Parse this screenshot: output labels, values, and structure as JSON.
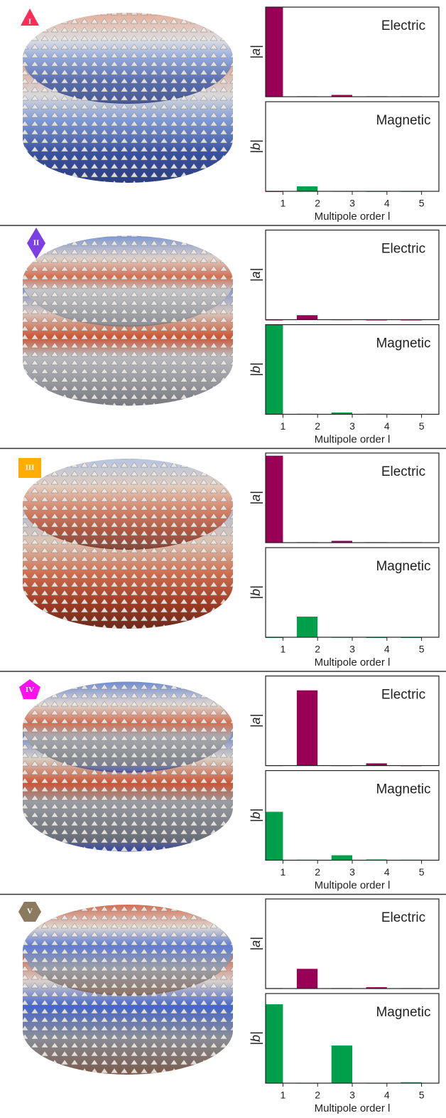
{
  "chart_data": [
    {
      "type": "bar",
      "annotation": "I",
      "text": "Electric",
      "ylabel": "|a|",
      "x": [
        1,
        2,
        3,
        4,
        5
      ],
      "values": [
        1.0,
        0.005,
        0.02,
        0.005,
        0.005
      ],
      "color": "#990055",
      "xlim": [
        0.5,
        5.5
      ],
      "ylim": [
        0,
        1
      ]
    },
    {
      "type": "bar",
      "text": "Magnetic",
      "ylabel": "|b|",
      "x": [
        1,
        2,
        3,
        4,
        5
      ],
      "values": [
        0,
        0.055,
        0.003,
        0.002,
        0.002
      ],
      "color": "#00a04a",
      "xlim": [
        0.5,
        5.5
      ],
      "ylim": [
        0,
        1
      ],
      "xticks": [
        1,
        2,
        3,
        4,
        5
      ],
      "xlabel": "Multipole order l"
    },
    {
      "type": "bar",
      "annotation": "II",
      "text": "Electric",
      "ylabel": "|a|",
      "x": [
        1,
        2,
        3,
        4,
        5
      ],
      "values": [
        0,
        0.05,
        0.003,
        0,
        0
      ],
      "color": "#990055",
      "xlim": [
        0.5,
        5.5
      ],
      "ylim": [
        0,
        1
      ]
    },
    {
      "type": "bar",
      "text": "Magnetic",
      "ylabel": "|b|",
      "x": [
        1,
        2,
        3,
        4,
        5
      ],
      "values": [
        1.0,
        0.005,
        0.02,
        0.005,
        0.003
      ],
      "color": "#00a04a",
      "xlim": [
        0.5,
        5.5
      ],
      "ylim": [
        0,
        1
      ],
      "xticks": [
        1,
        2,
        3,
        4,
        5
      ],
      "xlabel": "Multipole order l"
    },
    {
      "type": "bar",
      "annotation": "III",
      "text": "Electric",
      "ylabel": "|a|",
      "x": [
        1,
        2,
        3,
        4,
        5
      ],
      "values": [
        0.97,
        0.005,
        0.02,
        0.005,
        0.005
      ],
      "color": "#990055",
      "xlim": [
        0.5,
        5.5
      ],
      "ylim": [
        0,
        1
      ]
    },
    {
      "type": "bar",
      "text": "Magnetic",
      "ylabel": "|b|",
      "x": [
        1,
        2,
        3,
        4,
        5
      ],
      "values": [
        0,
        0.23,
        0.002,
        0,
        0
      ],
      "color": "#00a04a",
      "xlim": [
        0.5,
        5.5
      ],
      "ylim": [
        0,
        1
      ],
      "xticks": [
        1,
        2,
        3,
        4,
        5
      ],
      "xlabel": "Multipole order l"
    },
    {
      "type": "bar",
      "annotation": "IV",
      "text": "Electric",
      "ylabel": "|a|",
      "x": [
        1,
        2,
        3,
        4,
        5
      ],
      "values": [
        0.003,
        0.84,
        0.003,
        0.025,
        0.002
      ],
      "color": "#990055",
      "xlim": [
        0.5,
        5.5
      ],
      "ylim": [
        0,
        1
      ]
    },
    {
      "type": "bar",
      "text": "Magnetic",
      "ylabel": "|b|",
      "x": [
        1,
        2,
        3,
        4,
        5
      ],
      "values": [
        0.54,
        0.005,
        0.055,
        0.008,
        0.005
      ],
      "color": "#00a04a",
      "xlim": [
        0.5,
        5.5
      ],
      "ylim": [
        0,
        1
      ],
      "xticks": [
        1,
        2,
        3,
        4,
        5
      ],
      "xlabel": "Multipole order l"
    },
    {
      "type": "bar",
      "annotation": "V",
      "text": "Electric",
      "ylabel": "|a|",
      "x": [
        1,
        2,
        3,
        4,
        5
      ],
      "values": [
        0.005,
        0.22,
        0.005,
        0.015,
        0.005
      ],
      "color": "#990055",
      "xlim": [
        0.5,
        5.5
      ],
      "ylim": [
        0,
        1
      ]
    },
    {
      "type": "bar",
      "text": "Magnetic",
      "ylabel": "|b|",
      "x": [
        1,
        2,
        3,
        4,
        5
      ],
      "values": [
        0.88,
        0.003,
        0.42,
        0.003,
        0.01
      ],
      "color": "#00a04a",
      "xlim": [
        0.5,
        5.5
      ],
      "ylim": [
        0,
        1
      ],
      "xticks": [
        1,
        2,
        3,
        4,
        5
      ],
      "xlabel": "Multipole order l"
    }
  ]
}
